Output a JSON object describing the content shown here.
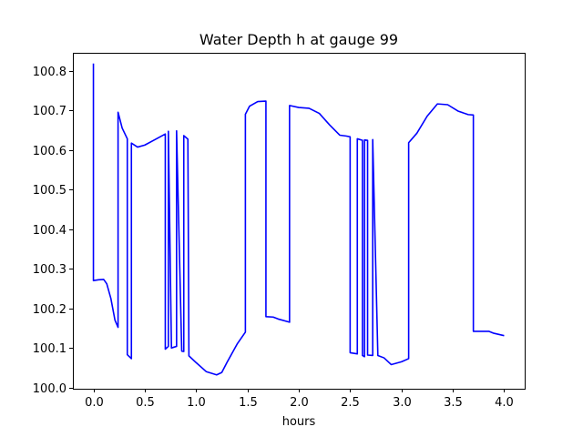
{
  "chart_data": {
    "type": "line",
    "title": "Water Depth h at gauge 99",
    "xlabel": "hours",
    "ylabel": "",
    "xlim": [
      -0.2,
      4.2
    ],
    "ylim": [
      99.997,
      100.845
    ],
    "xticks": [
      0.0,
      0.5,
      1.0,
      1.5,
      2.0,
      2.5,
      3.0,
      3.5,
      4.0
    ],
    "xtick_labels": [
      "0.0",
      "0.5",
      "1.0",
      "1.5",
      "2.0",
      "2.5",
      "3.0",
      "3.5",
      "4.0"
    ],
    "yticks": [
      100.0,
      100.1,
      100.2,
      100.3,
      100.4,
      100.5,
      100.6,
      100.7,
      100.8
    ],
    "ytick_labels": [
      "100.0",
      "100.1",
      "100.2",
      "100.3",
      "100.4",
      "100.5",
      "100.6",
      "100.7",
      "100.8"
    ],
    "grid": false,
    "legend": "none",
    "series": [
      {
        "color": "#0000ff",
        "x": [
          0.0,
          0.0,
          0.05,
          0.1,
          0.13,
          0.17,
          0.21,
          0.24,
          0.24,
          0.28,
          0.33,
          0.33,
          0.37,
          0.37,
          0.43,
          0.5,
          0.6,
          0.7,
          0.7,
          0.73,
          0.73,
          0.76,
          0.81,
          0.81,
          0.86,
          0.88,
          0.88,
          0.92,
          0.93,
          1.0,
          1.1,
          1.2,
          1.25,
          1.3,
          1.4,
          1.48,
          1.48,
          1.52,
          1.6,
          1.68,
          1.68,
          1.75,
          1.8,
          1.91,
          1.91,
          2.0,
          2.1,
          2.2,
          2.3,
          2.4,
          2.46,
          2.5,
          2.5,
          2.57,
          2.57,
          2.62,
          2.62,
          2.64,
          2.64,
          2.67,
          2.67,
          2.72,
          2.72,
          2.77,
          2.83,
          2.9,
          3.0,
          3.07,
          3.07,
          3.15,
          3.25,
          3.35,
          3.45,
          3.55,
          3.65,
          3.7,
          3.7,
          3.75,
          3.85,
          3.9,
          4.0
        ],
        "y": [
          100.818,
          100.27,
          100.272,
          100.273,
          100.262,
          100.225,
          100.17,
          100.152,
          100.695,
          100.655,
          100.628,
          100.083,
          100.073,
          100.617,
          100.607,
          100.612,
          100.626,
          100.64,
          100.097,
          100.104,
          100.647,
          100.1,
          100.104,
          100.648,
          100.092,
          100.091,
          100.636,
          100.627,
          100.08,
          100.063,
          100.04,
          100.032,
          100.038,
          100.063,
          100.11,
          100.14,
          100.69,
          100.71,
          100.722,
          100.723,
          100.179,
          100.178,
          100.173,
          100.165,
          100.712,
          100.707,
          100.705,
          100.692,
          100.663,
          100.637,
          100.635,
          100.633,
          100.088,
          100.085,
          100.628,
          100.624,
          100.081,
          100.078,
          100.625,
          100.624,
          100.082,
          100.081,
          100.626,
          100.081,
          100.075,
          100.058,
          100.065,
          100.073,
          100.618,
          100.642,
          100.685,
          100.716,
          100.714,
          100.698,
          100.689,
          100.688,
          100.142,
          100.142,
          100.142,
          100.137,
          100.131
        ]
      }
    ]
  }
}
